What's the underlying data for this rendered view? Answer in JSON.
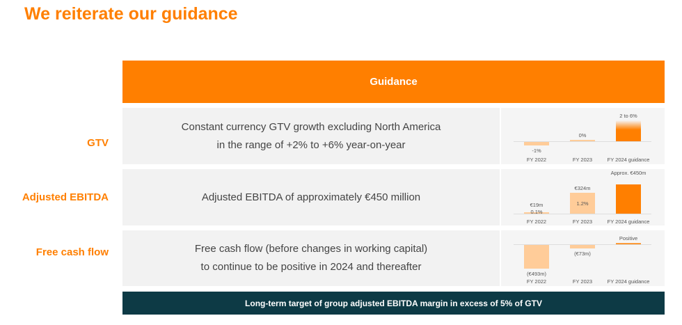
{
  "title": "We reiterate our guidance",
  "header": "Guidance",
  "rows": [
    {
      "label": "GTV",
      "lines": [
        "Constant currency GTV growth excluding North America",
        "in the range of +2% to +6% year-on-year"
      ]
    },
    {
      "label": "Adjusted EBITDA",
      "lines": [
        "Adjusted EBITDA of approximately €450 million"
      ]
    },
    {
      "label": "Free cash flow",
      "lines": [
        "Free cash flow (before changes in working capital)",
        "to continue to be positive in 2024 and thereafter"
      ]
    }
  ],
  "footer": "Long-term target of group adjusted EBITDA margin in excess of 5% of GTV",
  "colors": {
    "accent": "#ff7f00",
    "light": "#ffcc99",
    "dark": "#0d3a45"
  },
  "chart_data": [
    {
      "type": "bar",
      "title": "GTV growth",
      "categories": [
        "FY 2022",
        "FY 2023",
        "FY 2024 guidance"
      ],
      "values": [
        -1,
        0,
        6
      ],
      "labels": [
        "-1%",
        "0%",
        "2 to 6%"
      ],
      "range": [
        2,
        6
      ]
    },
    {
      "type": "bar",
      "title": "Adjusted EBITDA",
      "categories": [
        "FY 2022",
        "FY 2023",
        "FY 2024 guidance"
      ],
      "values": [
        19,
        324,
        450
      ],
      "labels": [
        "€19m",
        "€324m",
        "Approx. €450m"
      ],
      "margins": [
        "0.1%",
        "1.2%",
        null
      ]
    },
    {
      "type": "bar",
      "title": "Free cash flow",
      "categories": [
        "FY 2022",
        "FY 2023",
        "FY 2024 guidance"
      ],
      "values": [
        -493,
        -73,
        35
      ],
      "labels": [
        "(€493m)",
        "(€73m)",
        "Positive"
      ]
    }
  ]
}
